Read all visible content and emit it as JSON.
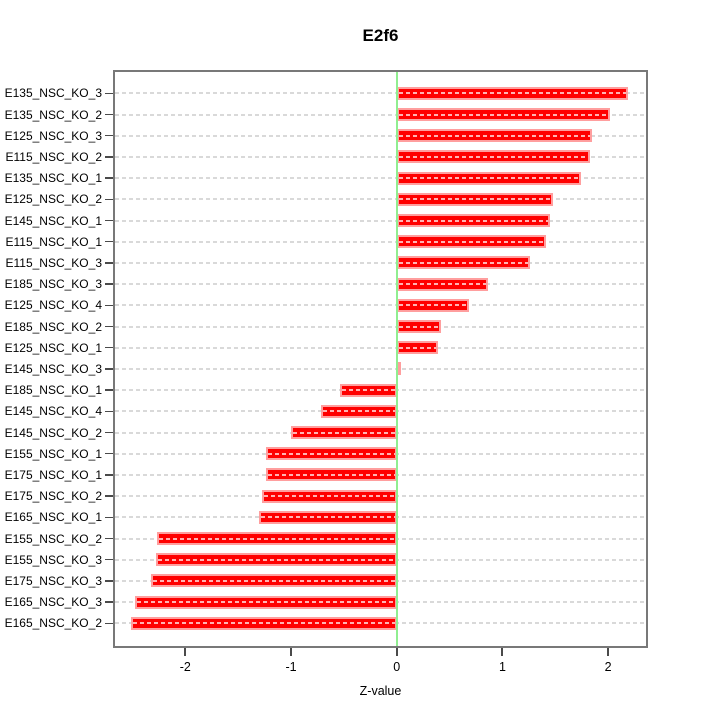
{
  "title": "E2f6",
  "chart_data": {
    "type": "bar",
    "orientation": "horizontal",
    "title": "E2f6",
    "xlabel": "Z-value",
    "ylabel": "",
    "categories": [
      "E135_NSC_KO_3",
      "E135_NSC_KO_2",
      "E125_NSC_KO_3",
      "E115_NSC_KO_2",
      "E135_NSC_KO_1",
      "E125_NSC_KO_2",
      "E145_NSC_KO_1",
      "E115_NSC_KO_1",
      "E115_NSC_KO_3",
      "E185_NSC_KO_3",
      "E125_NSC_KO_4",
      "E185_NSC_KO_2",
      "E125_NSC_KO_1",
      "E145_NSC_KO_3",
      "E185_NSC_KO_1",
      "E145_NSC_KO_4",
      "E145_NSC_KO_2",
      "E155_NSC_KO_1",
      "E175_NSC_KO_1",
      "E175_NSC_KO_2",
      "E165_NSC_KO_1",
      "E155_NSC_KO_2",
      "E155_NSC_KO_3",
      "E175_NSC_KO_3",
      "E165_NSC_KO_3",
      "E165_NSC_KO_2"
    ],
    "values": [
      2.19,
      2.02,
      1.85,
      1.83,
      1.74,
      1.48,
      1.45,
      1.41,
      1.26,
      0.86,
      0.68,
      0.42,
      0.39,
      0.02,
      -0.54,
      -0.72,
      -1.0,
      -1.24,
      -1.24,
      -1.27,
      -1.3,
      -2.27,
      -2.28,
      -2.32,
      -2.48,
      -2.51
    ],
    "xlim": [
      -2.684,
      2.377
    ],
    "xticks": [
      -2,
      -1,
      0,
      1,
      2
    ],
    "grid": "dotted horizontal line per category",
    "zero_line": 0,
    "legend": null
  },
  "colors": {
    "bar": "#ff0000",
    "bar_edge": "#ff9e9e",
    "zero_line": "#90ee90",
    "grid": "#d9d9d9",
    "box": "#787878",
    "tick": "#4a4a4a",
    "text": "#000000",
    "background": "#ffffff"
  }
}
